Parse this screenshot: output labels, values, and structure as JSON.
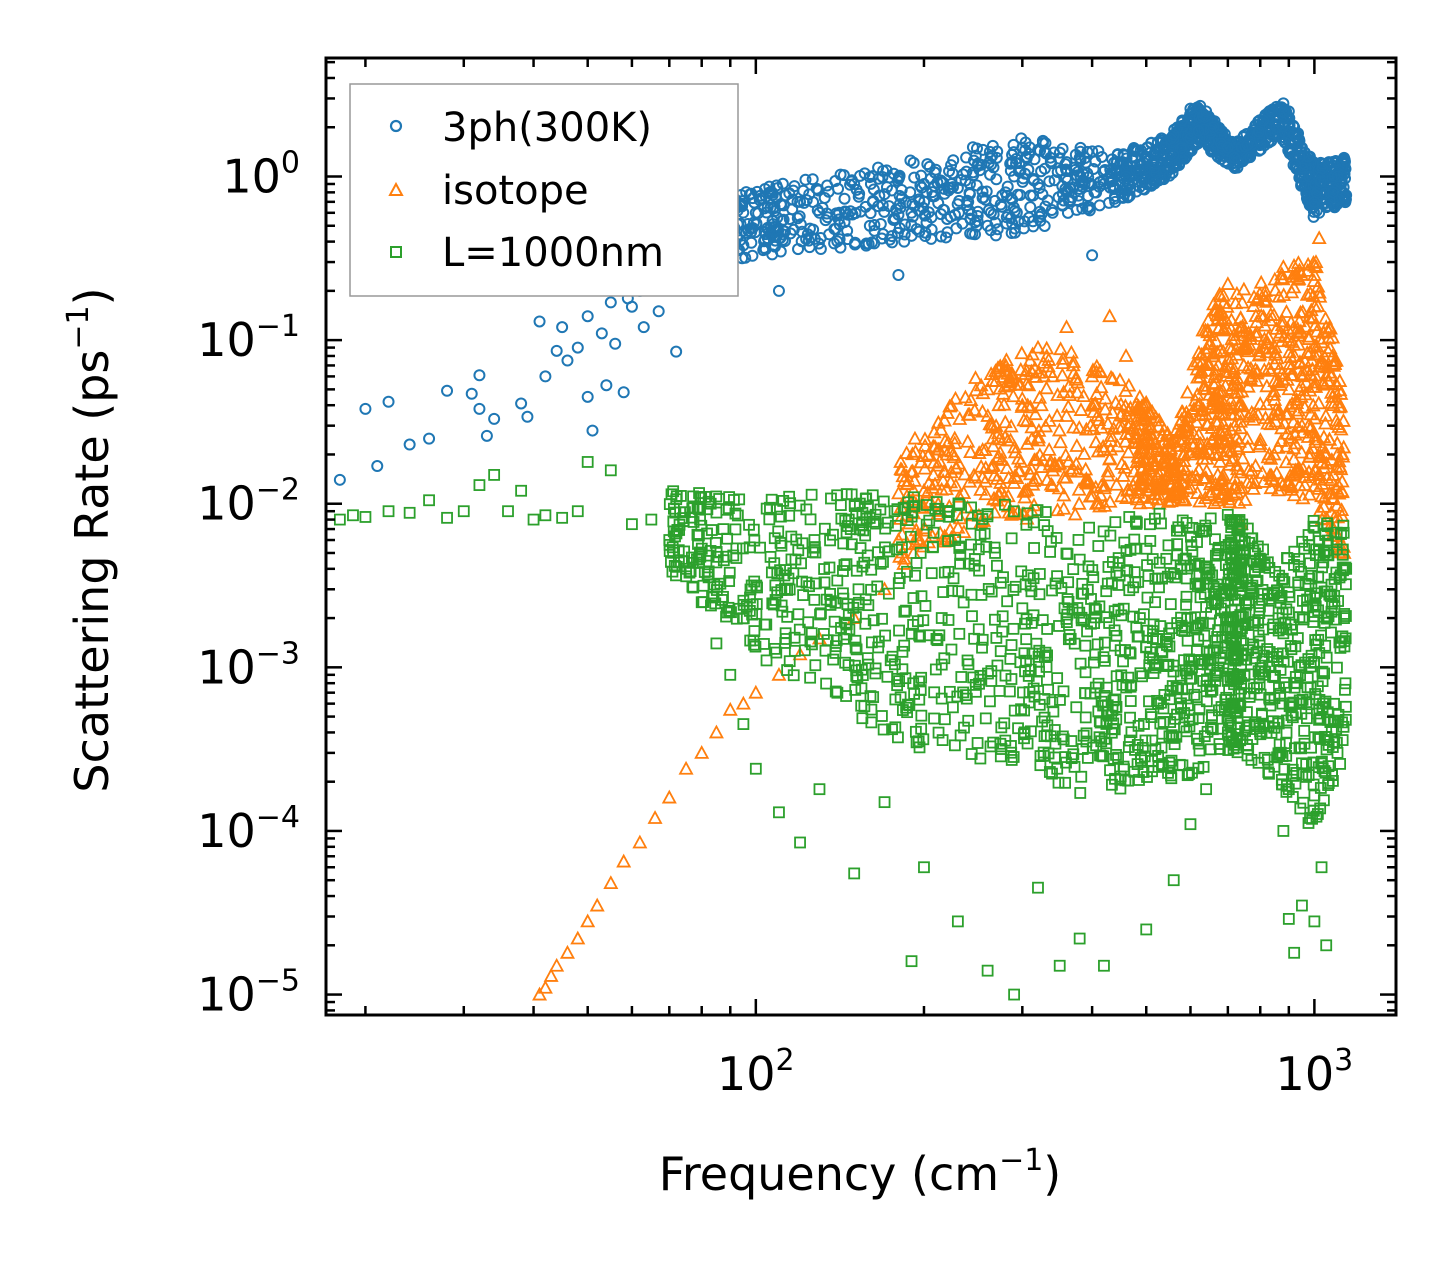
{
  "chart_data": {
    "type": "scatter",
    "title": "",
    "xlabel": "Frequency (cm",
    "xlabel_sup": "−1",
    "xlabel_suffix": ")",
    "ylabel": "Scattering Rate (ps",
    "ylabel_sup": "−1",
    "ylabel_suffix": ")",
    "xscale": "log",
    "yscale": "log",
    "xlim": [
      17,
      1400
    ],
    "ylim": [
      7.5e-06,
      5.3
    ],
    "x_ticks": [
      {
        "base": "10",
        "exp": "2",
        "value": 100
      },
      {
        "base": "10",
        "exp": "3",
        "value": 1000
      }
    ],
    "y_ticks": [
      {
        "base": "10",
        "exp": "0",
        "value": 1
      },
      {
        "base": "10",
        "exp": "−1",
        "value": 0.1
      },
      {
        "base": "10",
        "exp": "−2",
        "value": 0.01
      },
      {
        "base": "10",
        "exp": "−3",
        "value": 0.001
      },
      {
        "base": "10",
        "exp": "−4",
        "value": 0.0001
      },
      {
        "base": "10",
        "exp": "−5",
        "value": 1e-05
      }
    ],
    "legend_position": "upper-left",
    "series": [
      {
        "name": "3ph(300K)",
        "color": "#1f77b4",
        "marker": "circle",
        "points": [
          [
            18,
            0.014
          ],
          [
            20,
            0.038
          ],
          [
            21,
            0.017
          ],
          [
            22,
            0.042
          ],
          [
            24,
            0.023
          ],
          [
            26,
            0.025
          ],
          [
            28,
            0.049
          ],
          [
            31,
            0.047
          ],
          [
            32,
            0.061
          ],
          [
            32,
            0.038
          ],
          [
            33,
            0.026
          ],
          [
            34,
            0.033
          ],
          [
            38,
            0.041
          ],
          [
            39,
            0.034
          ],
          [
            41,
            0.13
          ],
          [
            42,
            0.06
          ],
          [
            44,
            0.086
          ],
          [
            45,
            0.12
          ],
          [
            46,
            0.075
          ],
          [
            48,
            0.09
          ],
          [
            50,
            0.14
          ],
          [
            50,
            0.045
          ],
          [
            51,
            0.028
          ],
          [
            53,
            0.11
          ],
          [
            54,
            0.053
          ],
          [
            55,
            0.17
          ],
          [
            56,
            0.095
          ],
          [
            58,
            0.048
          ],
          [
            59,
            0.18
          ],
          [
            60,
            0.16
          ],
          [
            62,
            0.2
          ],
          [
            63,
            0.12
          ],
          [
            65,
            0.26
          ],
          [
            67,
            0.15
          ],
          [
            70,
            0.3
          ],
          [
            72,
            0.085
          ],
          [
            74,
            0.42
          ],
          [
            76,
            0.7
          ],
          [
            78,
            0.55
          ],
          [
            80,
            0.22
          ],
          [
            82,
            0.65
          ],
          [
            85,
            0.45
          ],
          [
            90,
            0.5
          ],
          [
            95,
            0.38
          ],
          [
            100,
            0.6
          ],
          [
            105,
            0.42
          ],
          [
            110,
            0.2
          ],
          [
            115,
            0.55
          ],
          [
            120,
            0.7
          ],
          [
            125,
            0.48
          ],
          [
            130,
            0.6
          ],
          [
            140,
            0.58
          ],
          [
            150,
            0.9
          ],
          [
            160,
            0.5
          ],
          [
            170,
            0.78
          ],
          [
            180,
            0.25
          ],
          [
            190,
            0.6
          ],
          [
            200,
            0.9
          ],
          [
            210,
            1.1
          ],
          [
            220,
            0.55
          ],
          [
            230,
            0.85
          ],
          [
            240,
            0.7
          ],
          [
            250,
            1.2
          ],
          [
            260,
            0.5
          ],
          [
            270,
            1.3
          ],
          [
            280,
            0.8
          ],
          [
            290,
            1.0
          ],
          [
            300,
            1.5
          ],
          [
            310,
            0.65
          ],
          [
            320,
            0.9
          ],
          [
            330,
            1.6
          ],
          [
            340,
            0.6
          ],
          [
            360,
            0.8
          ],
          [
            380,
            1.3
          ],
          [
            400,
            0.33
          ],
          [
            420,
            0.9
          ],
          [
            440,
            0.7
          ],
          [
            460,
            1.0
          ],
          [
            480,
            1.1
          ],
          [
            500,
            1.3
          ],
          [
            520,
            1.4
          ],
          [
            540,
            1.5
          ],
          [
            560,
            1.8
          ],
          [
            580,
            2.2
          ],
          [
            600,
            2.6
          ],
          [
            620,
            1.9
          ],
          [
            640,
            2.5
          ],
          [
            660,
            2.0
          ],
          [
            680,
            1.6
          ],
          [
            700,
            1.5
          ],
          [
            720,
            1.3
          ],
          [
            880,
            2.8
          ],
          [
            900,
            2.5
          ],
          [
            920,
            2.0
          ],
          [
            950,
            1.5
          ],
          [
            980,
            1.0
          ],
          [
            1000,
            0.7
          ],
          [
            1020,
            0.6
          ],
          [
            1050,
            0.65
          ],
          [
            1080,
            0.8
          ],
          [
            1100,
            1.0
          ],
          [
            1130,
            1.3
          ]
        ],
        "band": [
          [
            85,
            0.3,
            0.75
          ],
          [
            120,
            0.35,
            0.95
          ],
          [
            200,
            0.4,
            1.3
          ],
          [
            300,
            0.45,
            1.8
          ],
          [
            450,
            0.7,
            1.4
          ],
          [
            550,
            1.0,
            1.8
          ],
          [
            620,
            1.6,
            2.8
          ],
          [
            720,
            1.1,
            1.6
          ],
          [
            870,
            1.8,
            2.9
          ],
          [
            1000,
            0.55,
            1.2
          ],
          [
            1140,
            0.7,
            1.3
          ]
        ]
      },
      {
        "name": "isotope",
        "color": "#ff7f0e",
        "marker": "triangle",
        "points": [
          [
            41,
            1e-05
          ],
          [
            42,
            1.1e-05
          ],
          [
            43,
            1.3e-05
          ],
          [
            44,
            1.5e-05
          ],
          [
            46,
            1.8e-05
          ],
          [
            48,
            2.2e-05
          ],
          [
            50,
            2.8e-05
          ],
          [
            52,
            3.5e-05
          ],
          [
            55,
            4.8e-05
          ],
          [
            58,
            6.5e-05
          ],
          [
            62,
            8.5e-05
          ],
          [
            66,
            0.00012
          ],
          [
            70,
            0.00016
          ],
          [
            75,
            0.00024
          ],
          [
            80,
            0.0003
          ],
          [
            85,
            0.0004
          ],
          [
            90,
            0.00055
          ],
          [
            95,
            0.0006
          ],
          [
            100,
            0.0007
          ],
          [
            110,
            0.0009
          ],
          [
            120,
            0.0012
          ],
          [
            130,
            0.0015
          ],
          [
            150,
            0.002
          ],
          [
            170,
            0.003
          ],
          [
            180,
            0.006
          ],
          [
            200,
            0.012
          ],
          [
            220,
            0.02
          ],
          [
            240,
            0.035
          ],
          [
            260,
            0.05
          ],
          [
            280,
            0.07
          ],
          [
            300,
            0.04
          ],
          [
            320,
            0.09
          ],
          [
            340,
            0.06
          ],
          [
            360,
            0.12
          ],
          [
            400,
            0.06
          ],
          [
            430,
            0.14
          ],
          [
            460,
            0.08
          ],
          [
            500,
            0.04
          ],
          [
            550,
            0.015
          ],
          [
            600,
            0.02
          ],
          [
            640,
            0.05
          ],
          [
            680,
            0.15
          ],
          [
            700,
            0.22
          ],
          [
            720,
            0.03
          ],
          [
            740,
            0.0075
          ],
          [
            880,
            0.28
          ],
          [
            900,
            0.1
          ],
          [
            950,
            0.03
          ],
          [
            1000,
            0.25
          ],
          [
            1020,
            0.42
          ],
          [
            1050,
            0.12
          ],
          [
            1100,
            0.02
          ],
          [
            1130,
            0.005
          ]
        ],
        "band": [
          [
            180,
            0.004,
            0.02
          ],
          [
            260,
            0.008,
            0.07
          ],
          [
            340,
            0.008,
            0.1
          ],
          [
            480,
            0.01,
            0.05
          ],
          [
            560,
            0.01,
            0.025
          ],
          [
            660,
            0.01,
            0.2
          ],
          [
            730,
            0.01,
            0.2
          ],
          [
            870,
            0.012,
            0.25
          ],
          [
            1000,
            0.01,
            0.35
          ],
          [
            1130,
            0.004,
            0.05
          ]
        ]
      },
      {
        "name": "L=1000nm",
        "color": "#2ca02c",
        "marker": "square",
        "points": [
          [
            18,
            0.008
          ],
          [
            19,
            0.0085
          ],
          [
            20,
            0.0083
          ],
          [
            22,
            0.009
          ],
          [
            24,
            0.0088
          ],
          [
            26,
            0.0105
          ],
          [
            28,
            0.0082
          ],
          [
            30,
            0.009
          ],
          [
            32,
            0.013
          ],
          [
            34,
            0.015
          ],
          [
            36,
            0.009
          ],
          [
            38,
            0.012
          ],
          [
            40,
            0.008
          ],
          [
            42,
            0.0085
          ],
          [
            45,
            0.0082
          ],
          [
            48,
            0.009
          ],
          [
            50,
            0.018
          ],
          [
            55,
            0.016
          ],
          [
            60,
            0.0075
          ],
          [
            65,
            0.008
          ],
          [
            70,
            0.006
          ],
          [
            75,
            0.004
          ],
          [
            80,
            0.0025
          ],
          [
            85,
            0.0014
          ],
          [
            90,
            0.0009
          ],
          [
            95,
            0.00045
          ],
          [
            100,
            0.00024
          ],
          [
            110,
            0.00013
          ],
          [
            120,
            8.5e-05
          ],
          [
            130,
            0.00018
          ],
          [
            150,
            5.5e-05
          ],
          [
            170,
            0.00015
          ],
          [
            190,
            1.6e-05
          ],
          [
            200,
            6e-05
          ],
          [
            230,
            2.8e-05
          ],
          [
            260,
            1.4e-05
          ],
          [
            290,
            1e-05
          ],
          [
            320,
            4.5e-05
          ],
          [
            350,
            1.5e-05
          ],
          [
            380,
            2.2e-05
          ],
          [
            420,
            1.5e-05
          ],
          [
            500,
            2.5e-05
          ],
          [
            560,
            5e-05
          ],
          [
            600,
            0.00011
          ],
          [
            640,
            0.00018
          ],
          [
            700,
            0.0004
          ],
          [
            730,
            0.0006
          ],
          [
            880,
            0.0001
          ],
          [
            900,
            2.9e-05
          ],
          [
            920,
            1.8e-05
          ],
          [
            950,
            3.5e-05
          ],
          [
            1000,
            2.8e-05
          ],
          [
            1030,
            6e-05
          ],
          [
            1050,
            2e-05
          ],
          [
            1100,
            0.0003
          ],
          [
            1130,
            0.002
          ],
          [
            1140,
            0.004
          ]
        ],
        "band": [
          [
            70,
            0.004,
            0.012
          ],
          [
            100,
            0.0012,
            0.011
          ],
          [
            150,
            0.0005,
            0.012
          ],
          [
            200,
            0.0003,
            0.011
          ],
          [
            300,
            0.00025,
            0.01
          ],
          [
            400,
            0.00015,
            0.008
          ],
          [
            500,
            0.0002,
            0.009
          ],
          [
            600,
            0.0002,
            0.008
          ],
          [
            700,
            0.0003,
            0.009
          ],
          [
            740,
            0.0003,
            0.008
          ],
          [
            860,
            0.0002,
            0.004
          ],
          [
            1000,
            0.0001,
            0.008
          ],
          [
            1140,
            0.0003,
            0.008
          ]
        ]
      }
    ]
  }
}
